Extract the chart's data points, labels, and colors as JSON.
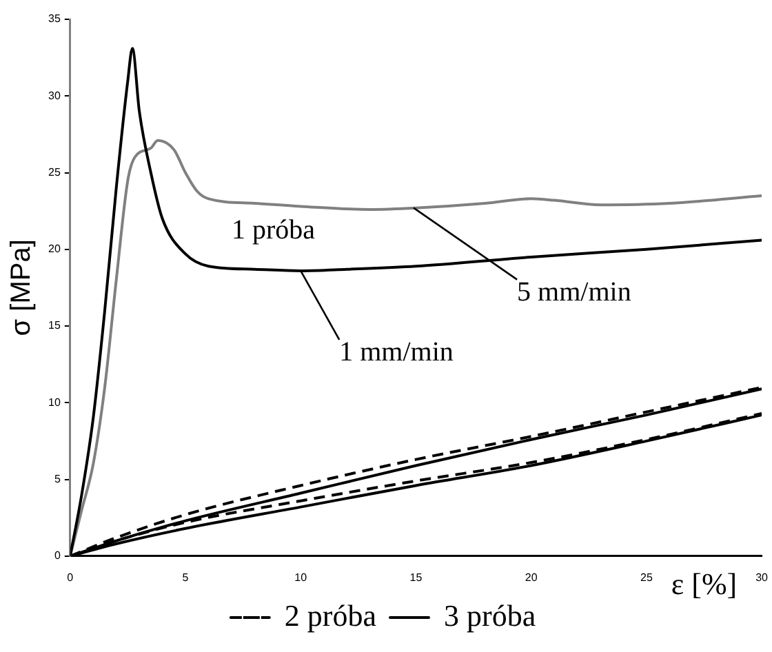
{
  "chart_data": {
    "type": "line",
    "xlabel": "ε [%]",
    "ylabel": "σ [MPa]",
    "xlim": [
      0,
      30
    ],
    "xticks": [
      0,
      5,
      10,
      15,
      20,
      25,
      30
    ],
    "ylim": [
      0,
      35
    ],
    "yticks": [
      0,
      5,
      10,
      15,
      20,
      25,
      30,
      35
    ],
    "grid": false,
    "legend": "bottom",
    "marker": "none",
    "series": [
      {
        "color": "#000000",
        "line_style": "solid",
        "x": [
          0,
          0.5,
          1,
          1.5,
          2,
          2.5,
          2.7,
          3,
          3.5,
          4,
          5,
          6,
          8,
          10,
          12,
          15,
          20,
          25,
          30
        ],
        "values": [
          0,
          4,
          9,
          16,
          24,
          31,
          33.1,
          29,
          25,
          22,
          19.7,
          18.9,
          18.7,
          18.6,
          18.7,
          18.9,
          19.5,
          20,
          20.6
        ]
      },
      {
        "color": "#808080",
        "line_style": "solid",
        "x": [
          0,
          0.5,
          1,
          1.5,
          2,
          2.5,
          2.8,
          3.5,
          3.8,
          4.5,
          5,
          5.5,
          6,
          8,
          10,
          13,
          15,
          18,
          20,
          21,
          23,
          26,
          30
        ],
        "values": [
          0,
          3,
          6,
          11,
          18,
          24.5,
          26,
          26.6,
          27.1,
          26.5,
          25,
          23.8,
          23.3,
          23,
          22.8,
          22.6,
          22.7,
          23,
          23.3,
          23.2,
          22.9,
          23,
          23.5
        ]
      },
      {
        "name": "2 próba",
        "color": "#000000",
        "line_style": "dashed",
        "x": [
          0,
          2,
          5,
          10,
          15,
          20,
          25,
          30
        ],
        "values": [
          0,
          1.2,
          2.7,
          4.6,
          6.3,
          7.8,
          9.4,
          11
        ]
      },
      {
        "name": "3 próba",
        "color": "#000000",
        "line_style": "solid",
        "x": [
          0,
          2,
          5,
          10,
          15,
          20,
          25,
          30
        ],
        "values": [
          0,
          1,
          2.3,
          4.1,
          5.9,
          7.6,
          9.2,
          10.9
        ]
      },
      {
        "color": "#000000",
        "line_style": "dashed",
        "x": [
          0,
          2,
          5,
          10,
          15,
          20,
          25,
          30
        ],
        "values": [
          0,
          1,
          2.2,
          3.6,
          4.9,
          6.1,
          7.6,
          9.3
        ]
      },
      {
        "color": "#000000",
        "line_style": "solid",
        "x": [
          0,
          2,
          5,
          10,
          15,
          20,
          25,
          30
        ],
        "values": [
          0,
          0.8,
          1.8,
          3.2,
          4.6,
          5.9,
          7.5,
          9.2
        ]
      }
    ],
    "annotations": [
      "1 próba",
      {
        "text": "1 mm/min",
        "x": 10,
        "y": 18.6
      },
      {
        "text": "5 mm/min",
        "x": 14.9,
        "y": 22.7
      }
    ]
  }
}
